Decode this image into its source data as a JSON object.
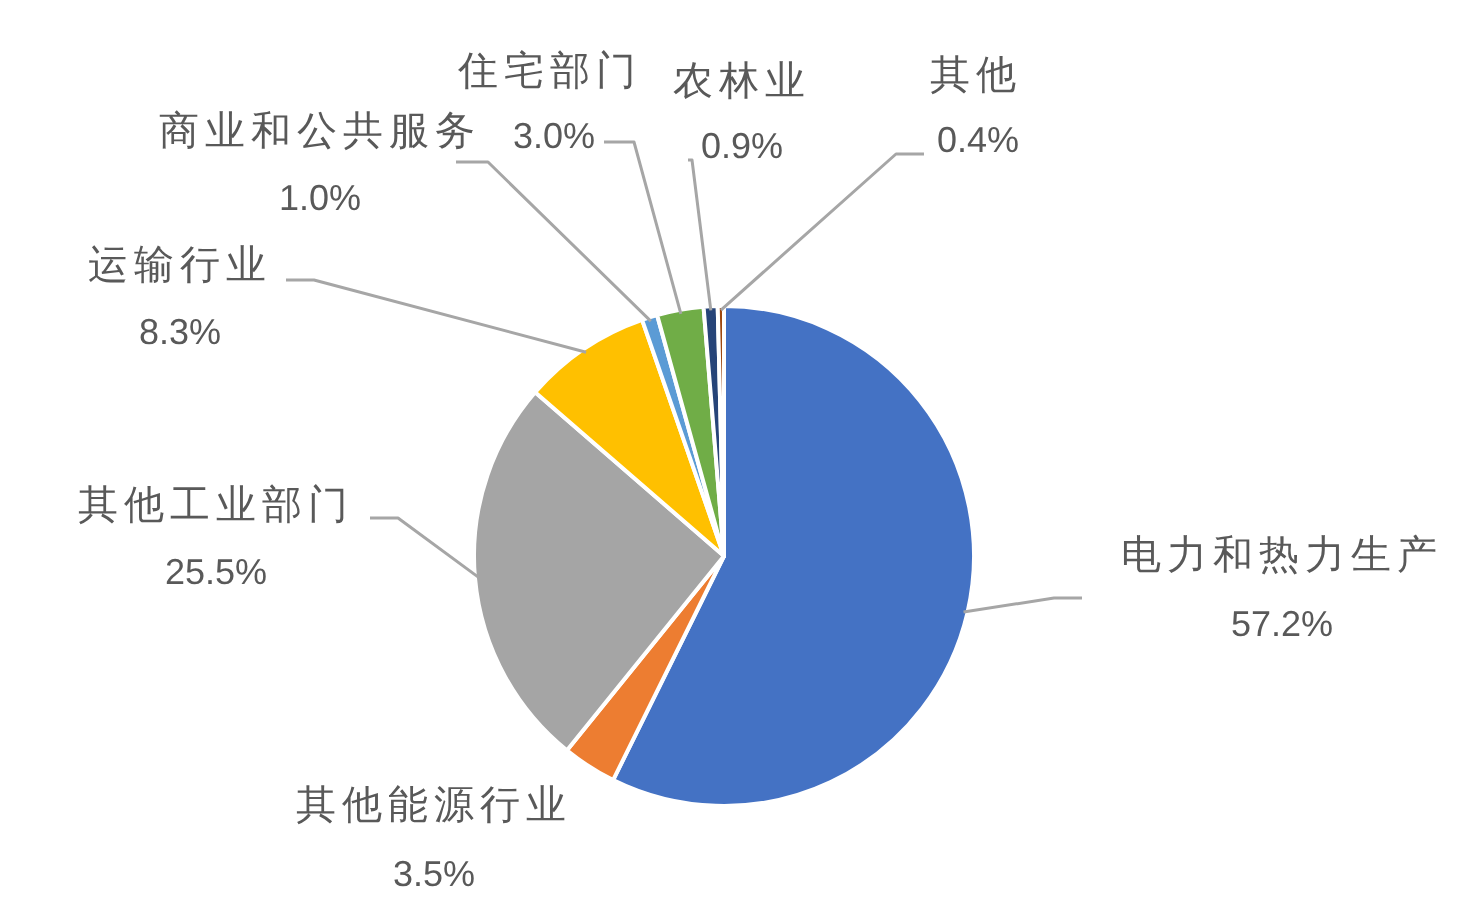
{
  "chart_data": {
    "type": "pie",
    "categories": [
      "电力和热力生产",
      "其他能源行业",
      "其他工业部门",
      "运输行业",
      "商业和公共服务",
      "住宅部门",
      "农林业",
      "其他"
    ],
    "values": [
      57.2,
      3.5,
      25.5,
      8.3,
      1.0,
      3.0,
      0.9,
      0.4
    ],
    "colors": [
      "#4472c4",
      "#ed7d31",
      "#a5a5a5",
      "#ffc000",
      "#5b9bd5",
      "#70ad47",
      "#264478",
      "#9e480e"
    ],
    "value_labels": [
      "57.2%",
      "3.5%",
      "25.5%",
      "8.3%",
      "1.0%",
      "3.0%",
      "0.9%",
      "0.4%"
    ]
  }
}
